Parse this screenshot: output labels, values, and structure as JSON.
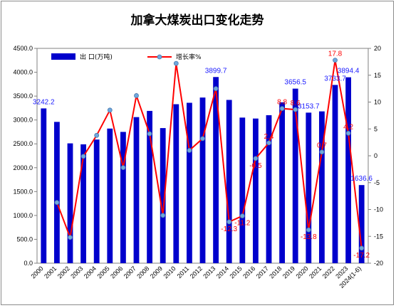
{
  "chart_data": {
    "type": "bar+line",
    "title": "加拿大煤炭出口变化走势",
    "categories": [
      "2000",
      "2001",
      "2002",
      "2003",
      "2004",
      "2005",
      "2006",
      "2007",
      "2008",
      "2009",
      "2010",
      "2011",
      "2012",
      "2013",
      "2014",
      "2015",
      "2016",
      "2017",
      "2018",
      "2019",
      "2020",
      "2021",
      "2022",
      "2023",
      "2024(1-6)"
    ],
    "series": [
      {
        "name": "出口(万吨)",
        "type": "bar",
        "axis": "left",
        "color": "#0000cc",
        "values": [
          3242.2,
          2960,
          2510,
          2490,
          2590,
          2820,
          2750,
          3060,
          3190,
          2830,
          3330,
          3360,
          3470,
          3899.7,
          3420,
          3050,
          3030,
          3100,
          3370,
          3656.5,
          3153.7,
          3180,
          3733.7,
          3894.4,
          1636.6
        ]
      },
      {
        "name": "增长率%",
        "type": "line",
        "axis": "right",
        "color": "#ff0000",
        "values": [
          null,
          -8.7,
          -15.2,
          -0.1,
          3.8,
          8.5,
          -2.2,
          11.2,
          4.1,
          -11.1,
          17.2,
          1.0,
          3.2,
          12.5,
          -12.3,
          -11.2,
          -0.5,
          2.4,
          8.8,
          8.6,
          -13.8,
          0.7,
          17.8,
          4.2,
          -17.2
        ]
      }
    ],
    "bar_labels": [
      {
        "index": 0,
        "text": "3242.2"
      },
      {
        "index": 13,
        "text": "3899.7"
      },
      {
        "index": 19,
        "text": "3656.5"
      },
      {
        "index": 20,
        "text": "3153.7"
      },
      {
        "index": 22,
        "text": "3733.7"
      },
      {
        "index": 23,
        "text": "3894.4"
      },
      {
        "index": 24,
        "text": "1636.6"
      }
    ],
    "line_labels": [
      {
        "index": 14,
        "text": "-12.3"
      },
      {
        "index": 15,
        "text": "-11.2"
      },
      {
        "index": 16,
        "text": "-0.5"
      },
      {
        "index": 17,
        "text": "2.4"
      },
      {
        "index": 18,
        "text": "8.8"
      },
      {
        "index": 19,
        "text": "8.6"
      },
      {
        "index": 20,
        "text": "-13.8"
      },
      {
        "index": 21,
        "text": "0.7"
      },
      {
        "index": 22,
        "text": "17.8"
      },
      {
        "index": 23,
        "text": "4.2"
      },
      {
        "index": 24,
        "text": "-17.2"
      }
    ],
    "y_left": {
      "min": 0,
      "max": 4500,
      "step": 500,
      "decimals": 1
    },
    "y_right": {
      "min": -20,
      "max": 20,
      "step": 5
    },
    "grid": false,
    "legend_position": "top-left",
    "legend": [
      "出 口(万吨)",
      "增长率%"
    ]
  }
}
